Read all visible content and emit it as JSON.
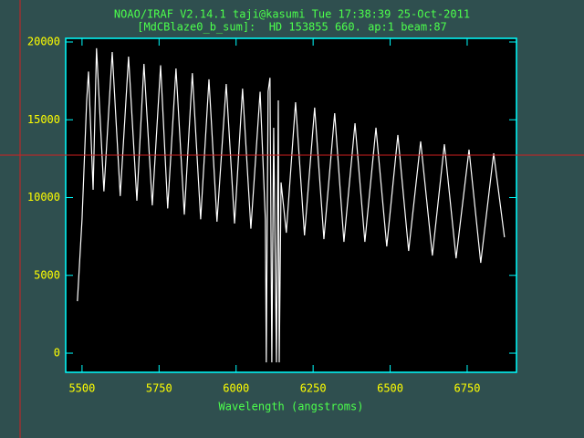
{
  "chart_data": {
    "type": "line",
    "title": "NOAO/IRAF V2.14.1 taji@kasumi Tue 17:38:39 25-Oct-2011",
    "subtitle": "[MdCBlaze0_b_sum]:  HD 153855 660. ap:1 beam:87",
    "x_label": "Wavelength (angstroms)",
    "xlim": [
      5447,
      6910
    ],
    "ylim": [
      -1230,
      20235
    ],
    "xticks": [
      5500,
      5750,
      6000,
      6250,
      6500,
      6750
    ],
    "yticks": [
      0,
      5000,
      10000,
      15000,
      20000
    ],
    "x": [
      5485,
      5500,
      5515,
      5521,
      5536,
      5547,
      5571,
      5598,
      5624,
      5651,
      5678,
      5701,
      5728,
      5755,
      5778,
      5805,
      5832,
      5858,
      5885,
      5912,
      5938,
      5968,
      5995,
      6021,
      6048,
      6078,
      6095,
      6098,
      6104,
      6110,
      6116,
      6122,
      6131,
      6137,
      6140,
      6146,
      6163,
      6193,
      6222,
      6255,
      6285,
      6320,
      6350,
      6386,
      6418,
      6454,
      6489,
      6525,
      6560,
      6599,
      6637,
      6676,
      6714,
      6756,
      6794,
      6836,
      6871
    ],
    "series": [
      {
        "color": "#ffffff",
        "values": [
          3340,
          8600,
          16200,
          18100,
          10500,
          19600,
          10400,
          19350,
          10100,
          19060,
          9800,
          18590,
          9500,
          18500,
          9300,
          18300,
          8900,
          18000,
          8600,
          17600,
          8450,
          17300,
          8330,
          17000,
          8000,
          16800,
          8600,
          -590,
          16830,
          17700,
          -590,
          14490,
          -590,
          16250,
          -590,
          10970,
          7740,
          16130,
          7570,
          15780,
          7330,
          15425,
          7155,
          14780,
          7155,
          14490,
          6860,
          14020,
          6570,
          13610,
          6275,
          13430,
          6100,
          13080,
          5805,
          12845,
          7450
        ]
      }
    ]
  }
}
